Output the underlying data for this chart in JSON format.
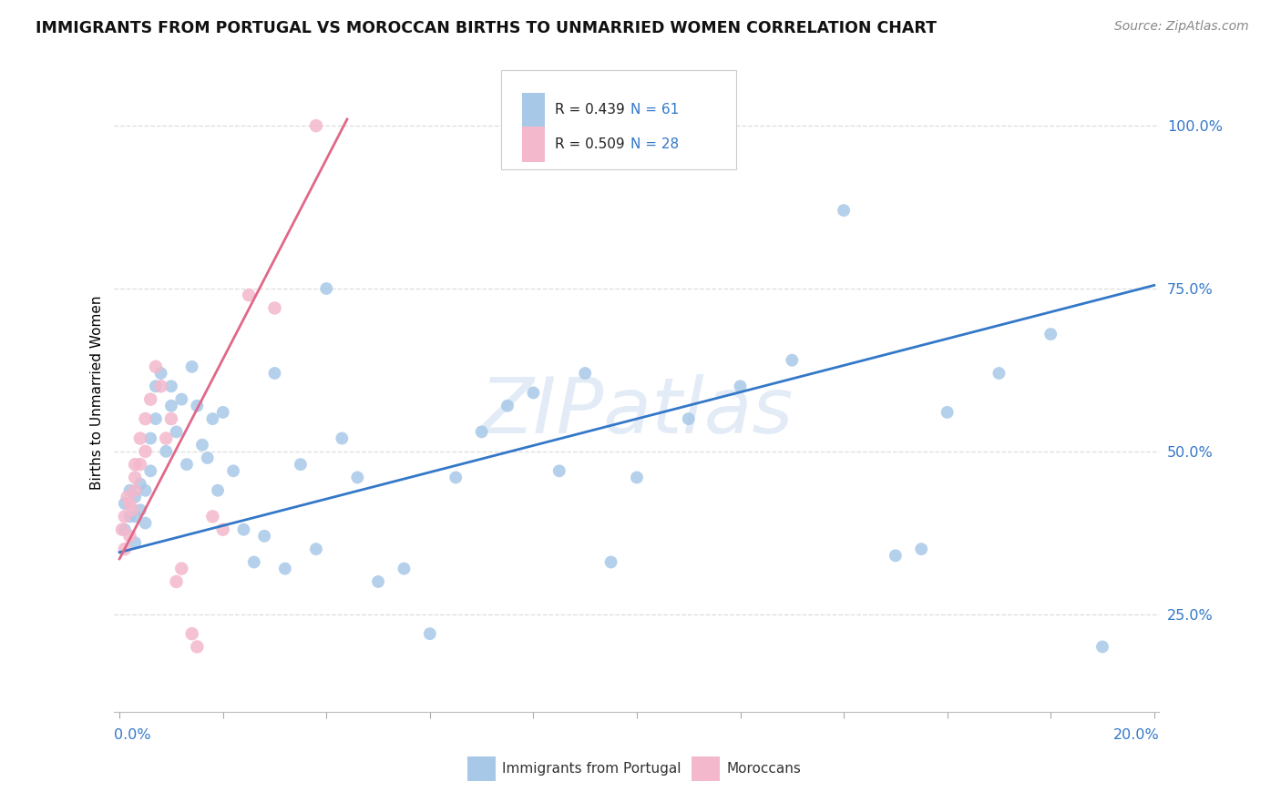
{
  "title": "IMMIGRANTS FROM PORTUGAL VS MOROCCAN BIRTHS TO UNMARRIED WOMEN CORRELATION CHART",
  "source": "Source: ZipAtlas.com",
  "ylabel": "Births to Unmarried Women",
  "legend_r1": "R = 0.439",
  "legend_n1": "N = 61",
  "legend_r2": "R = 0.509",
  "legend_n2": "N = 28",
  "blue_color": "#a8c8e8",
  "pink_color": "#f4b8cc",
  "line_blue": "#3378c8",
  "line_pink": "#e06888",
  "watermark": "ZIPatlas",
  "label1": "Immigrants from Portugal",
  "label2": "Moroccans",
  "R1": 0.439,
  "R2": 0.509,
  "N1": 61,
  "N2": 28,
  "xmin": -0.001,
  "xmax": 0.201,
  "ymin": 0.1,
  "ymax": 1.08,
  "yticks": [
    0.25,
    0.5,
    0.75,
    1.0
  ],
  "ytick_labels": [
    "25.0%",
    "50.0%",
    "75.0%",
    "100.0%"
  ],
  "xtick_left_label": "0.0%",
  "xtick_right_label": "20.0%",
  "blue_line_x0": 0.0,
  "blue_line_x1": 0.2,
  "blue_line_y0": 0.345,
  "blue_line_y1": 0.755,
  "pink_line_x0": 0.0,
  "pink_line_x1": 0.044,
  "pink_line_y0": 0.335,
  "pink_line_y1": 1.01
}
